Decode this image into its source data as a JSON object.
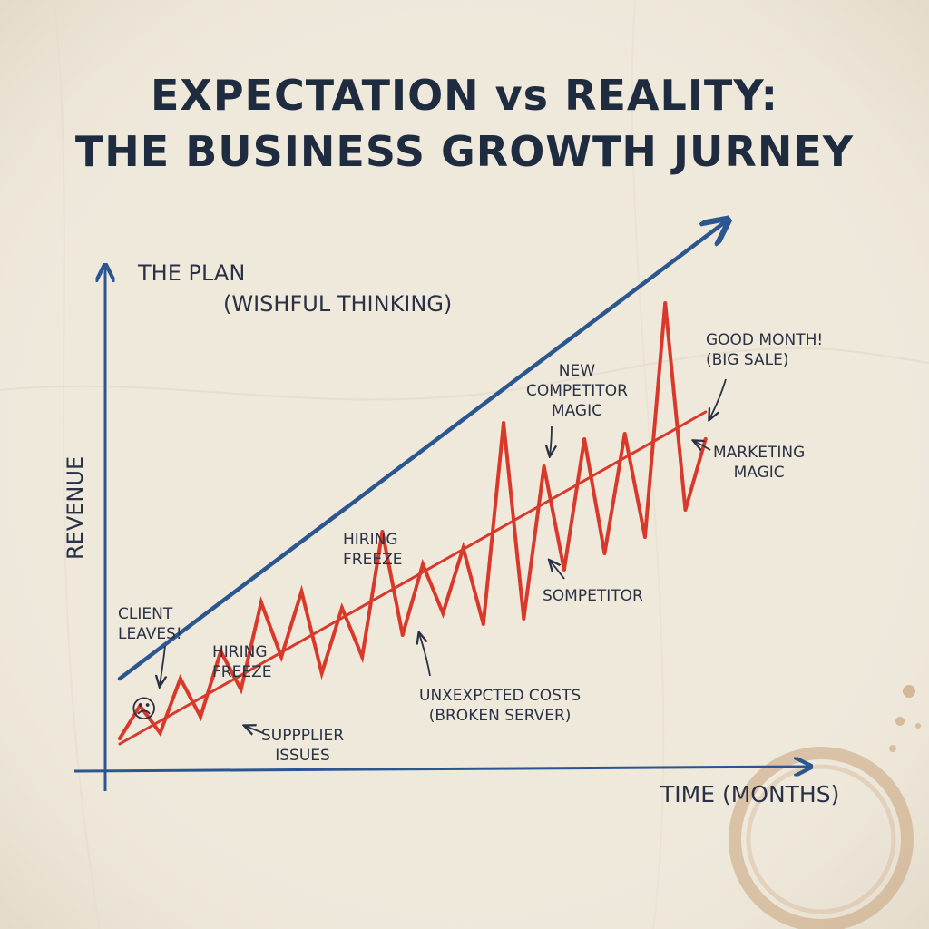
{
  "chart_data": {
    "type": "line",
    "title": "EXPECTATION vs REALITY:",
    "subtitle": "THE BUSINESS GROWTH JURNEY",
    "xlabel": "TIME (MONTHS)",
    "ylabel": "REVENUE",
    "x": [
      0,
      1,
      2,
      3,
      4,
      5,
      6,
      7,
      8,
      9,
      10,
      11,
      12,
      13,
      14,
      15,
      16,
      17,
      18,
      19,
      20,
      21,
      22,
      23,
      24,
      25,
      26,
      27,
      28,
      29
    ],
    "xlim": [
      0,
      30
    ],
    "ylim": [
      0,
      100
    ],
    "series": [
      {
        "name": "THE PLAN (WISHFUL THINKING)",
        "color": "#2b5690",
        "x": [
          0,
          30
        ],
        "values": [
          14,
          98
        ]
      },
      {
        "name": "",
        "color": "#d8392b",
        "x": [
          0,
          1,
          2,
          3,
          4,
          5,
          6,
          7,
          8,
          9,
          10,
          11,
          12,
          13,
          14,
          15,
          16,
          17,
          18,
          19,
          20,
          21,
          22,
          23,
          24,
          25,
          26,
          27,
          28,
          29
        ],
        "values": [
          3,
          9,
          4,
          14,
          7,
          19,
          12,
          28,
          18,
          30,
          15,
          27,
          18,
          41,
          22,
          35,
          26,
          38,
          24,
          61,
          25,
          53,
          34,
          58,
          37,
          59,
          40,
          83,
          45,
          58
        ]
      },
      {
        "name": "",
        "color": "#d8392b",
        "x": [
          0,
          29
        ],
        "values": [
          2,
          63
        ]
      }
    ],
    "annotations": [
      {
        "text": "CLIENT LEAVES!",
        "x": 1
      },
      {
        "text": "HIRING FREEZE",
        "x": 5
      },
      {
        "text": "SUPPPLIER ISSUES",
        "x": 6
      },
      {
        "text": "HIRING FREEZE",
        "x": 12
      },
      {
        "text": "UNXEXPCTED COSTS (BROKEN SERVER)",
        "x": 14
      },
      {
        "text": "NEW COMPETITOR MAGIC",
        "x": 20
      },
      {
        "text": "SOMPETITOR",
        "x": 20
      },
      {
        "text": "GOOD MONTH! (BIG SALE)",
        "x": 27
      },
      {
        "text": "MARKETING MAGIC",
        "x": 27
      }
    ],
    "grid": false,
    "legend": "none"
  },
  "annotations_text": {
    "plan_line1": "THE PLAN",
    "plan_line2": "(WISHFUL THINKING)",
    "client_line1": "CLIENT",
    "client_line2": "LEAVES!",
    "hiring1_line1": "HIRING",
    "hiring1_line2": "FREEZE",
    "supplier_line1": "SUPPPLIER",
    "supplier_line2": "ISSUES",
    "hiring2_line1": "HIRING",
    "hiring2_line2": "FREEZE",
    "costs_line1": "UNXEXPCTED COSTS",
    "costs_line2": "(BROKEN SERVER)",
    "competitor_line1": "NEW",
    "competitor_line2": "COMPETITOR",
    "competitor_line3": "MAGIC",
    "sompetitor": "SOMPETITOR",
    "good_line1": "GOOD MONTH!",
    "good_line2": "(BIG SALE)",
    "marketing_line1": "MARKETING",
    "marketing_line2": "MAGIC",
    "sad_face": "☹"
  },
  "colors": {
    "paper": "#efe9dc",
    "ink": "#1f2b3f",
    "plan_blue": "#2b5690",
    "reality_red": "#d8392b",
    "coffee_stain": "#c9a27a"
  }
}
